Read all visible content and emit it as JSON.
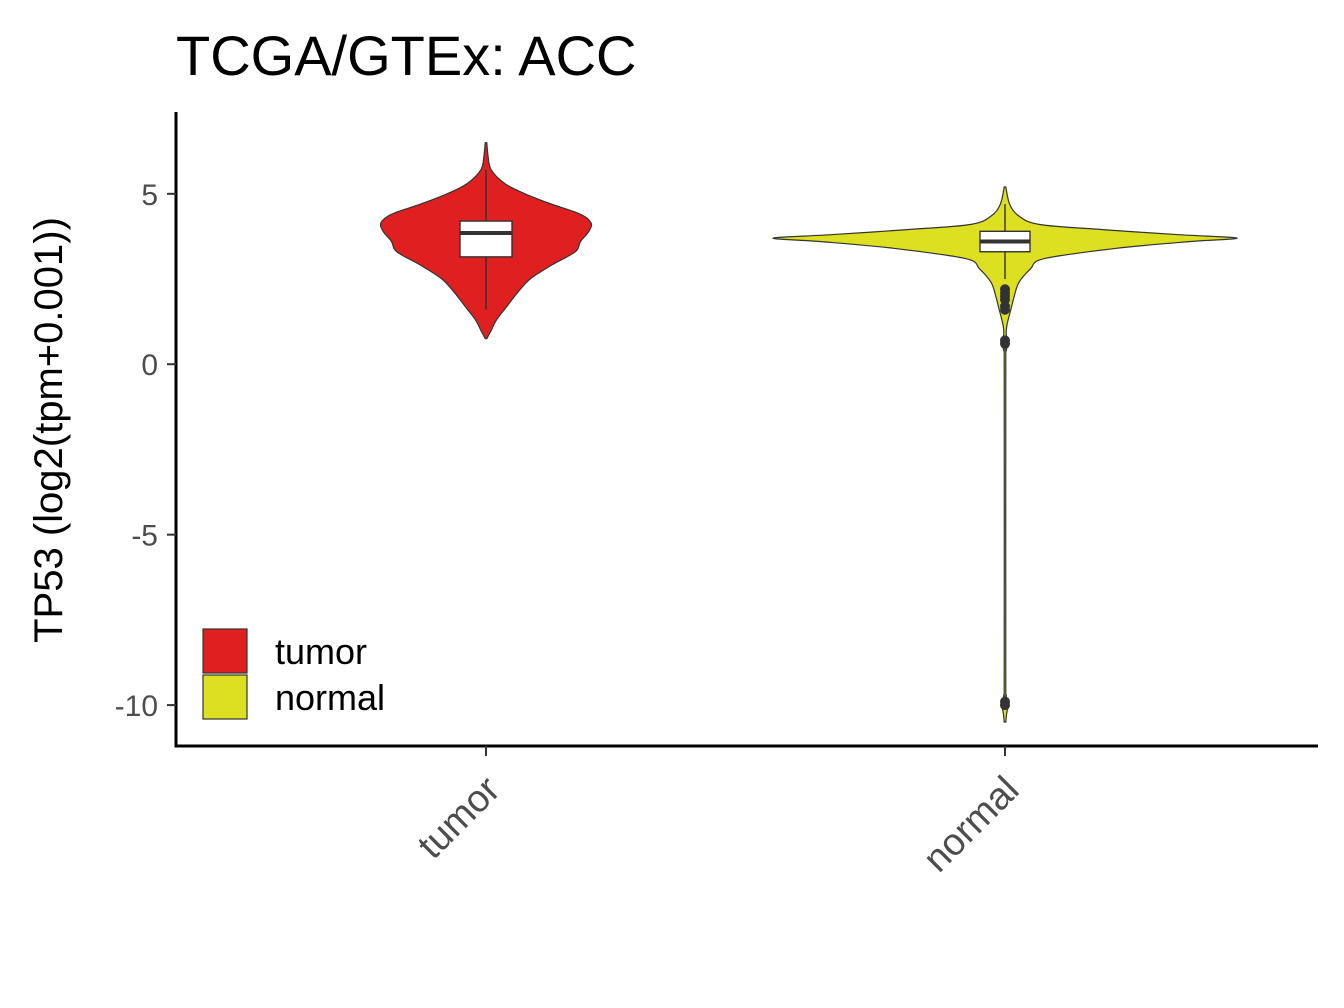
{
  "chart_data": {
    "type": "violin",
    "title": "TCGA/GTEx: ACC",
    "ylabel": "TP53 (log2(tpm+0.001))",
    "xlabel": "",
    "categories": [
      "tumor",
      "normal"
    ],
    "ylim": [
      -11.2,
      7.4
    ],
    "yticks": [
      {
        "value": 5,
        "label": "5"
      },
      {
        "value": 0,
        "label": "0"
      },
      {
        "value": -5,
        "label": "-5"
      },
      {
        "value": -10,
        "label": "-10"
      }
    ],
    "grid": false,
    "legend_position": "bottom-left",
    "legend": [
      {
        "label": "tumor",
        "color": "#e02020"
      },
      {
        "label": "normal",
        "color": "#dde020"
      }
    ],
    "series": [
      {
        "category": "tumor",
        "color": "#e02020",
        "min": 0.75,
        "max": 6.5,
        "box": {
          "q1": 3.15,
          "median": 3.85,
          "q3": 4.2,
          "whisker_low": 1.6,
          "whisker_high": 5.7
        },
        "outliers": [],
        "density": [
          [
            0.75,
            0
          ],
          [
            1.0,
            0.05
          ],
          [
            1.3,
            0.1
          ],
          [
            1.7,
            0.2
          ],
          [
            2.1,
            0.3
          ],
          [
            2.5,
            0.42
          ],
          [
            2.9,
            0.62
          ],
          [
            3.3,
            0.85
          ],
          [
            3.6,
            0.9
          ],
          [
            3.9,
            0.98
          ],
          [
            4.15,
            1.0
          ],
          [
            4.4,
            0.9
          ],
          [
            4.7,
            0.62
          ],
          [
            5.0,
            0.37
          ],
          [
            5.3,
            0.18
          ],
          [
            5.7,
            0.05
          ],
          [
            6.1,
            0.02
          ],
          [
            6.5,
            0
          ]
        ]
      },
      {
        "category": "normal",
        "color": "#dde020",
        "min": -10.5,
        "max": 5.2,
        "box": {
          "q1": 3.3,
          "median": 3.6,
          "q3": 3.9,
          "whisker_low": 2.5,
          "whisker_high": 4.7
        },
        "outliers": [
          2.2,
          2.1,
          2.0,
          1.9,
          1.7,
          1.6,
          0.7,
          0.6,
          -9.9,
          -10.0
        ],
        "density": [
          [
            -10.5,
            0
          ],
          [
            -10.3,
            0.006
          ],
          [
            -10.0,
            0.012
          ],
          [
            -9.7,
            0.005
          ],
          [
            -9.3,
            0.002
          ],
          [
            0,
            0.002
          ],
          [
            0.4,
            0.006
          ],
          [
            0.65,
            0.012
          ],
          [
            0.9,
            0.005
          ],
          [
            1.2,
            0.01
          ],
          [
            1.6,
            0.025
          ],
          [
            2.0,
            0.04
          ],
          [
            2.4,
            0.06
          ],
          [
            2.8,
            0.11
          ],
          [
            3.1,
            0.17
          ],
          [
            3.4,
            0.48
          ],
          [
            3.6,
            0.8
          ],
          [
            3.7,
            1.0
          ],
          [
            3.8,
            0.75
          ],
          [
            3.95,
            0.42
          ],
          [
            4.1,
            0.15
          ],
          [
            4.35,
            0.06
          ],
          [
            4.7,
            0.02
          ],
          [
            5.2,
            0
          ]
        ]
      }
    ]
  }
}
